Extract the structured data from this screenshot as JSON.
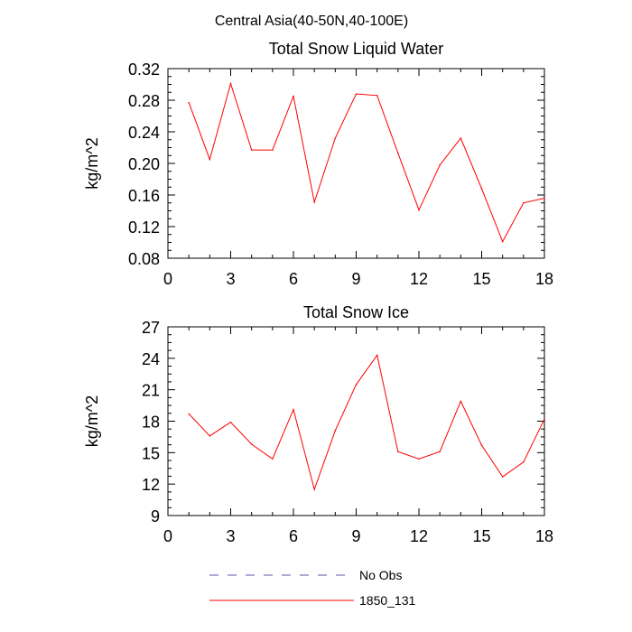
{
  "page_title": "Central Asia(40-50N,40-100E)",
  "chart_data": [
    {
      "type": "line",
      "title": "Total Snow Liquid Water",
      "xlabel": "",
      "ylabel": "kg/m^2",
      "xlim": [
        0,
        18
      ],
      "ylim": [
        0.08,
        0.32
      ],
      "xticks": [
        0,
        3,
        6,
        9,
        12,
        15,
        18
      ],
      "xtick_labels": [
        "0",
        "3",
        "6",
        "9",
        "12",
        "15",
        "18"
      ],
      "yticks": [
        0.08,
        0.12,
        0.16,
        0.2,
        0.24,
        0.28,
        0.32
      ],
      "ytick_labels": [
        "0.08",
        "0.12",
        "0.16",
        "0.20",
        "0.24",
        "0.28",
        "0.32"
      ],
      "grid": false,
      "series": [
        {
          "name": "1850_131",
          "color": "#ff0000",
          "x": [
            1,
            2,
            3,
            4,
            5,
            6,
            7,
            8,
            9,
            10,
            11,
            12,
            13,
            14,
            15,
            16,
            17,
            18
          ],
          "values": [
            0.277,
            0.205,
            0.301,
            0.217,
            0.217,
            0.285,
            0.151,
            0.232,
            0.288,
            0.286,
            0.213,
            0.141,
            0.198,
            0.232,
            0.168,
            0.101,
            0.15,
            0.156
          ]
        }
      ]
    },
    {
      "type": "line",
      "title": "Total Snow Ice",
      "xlabel": "",
      "ylabel": "kg/m^2",
      "xlim": [
        0,
        18
      ],
      "ylim": [
        9,
        27
      ],
      "xticks": [
        0,
        3,
        6,
        9,
        12,
        15,
        18
      ],
      "xtick_labels": [
        "0",
        "3",
        "6",
        "9",
        "12",
        "15",
        "18"
      ],
      "yticks": [
        9,
        12,
        15,
        18,
        21,
        24,
        27
      ],
      "ytick_labels": [
        "9",
        "12",
        "15",
        "18",
        "21",
        "24",
        "27"
      ],
      "grid": false,
      "series": [
        {
          "name": "1850_131",
          "color": "#ff0000",
          "x": [
            1,
            2,
            3,
            4,
            5,
            6,
            7,
            8,
            9,
            10,
            11,
            12,
            13,
            14,
            15,
            16,
            17,
            18
          ],
          "values": [
            18.7,
            16.6,
            17.9,
            15.8,
            14.4,
            19.1,
            11.5,
            17.1,
            21.5,
            24.3,
            15.1,
            14.4,
            15.1,
            19.9,
            15.7,
            12.7,
            14.1,
            18.2
          ]
        }
      ]
    }
  ],
  "legend": [
    {
      "label": "No Obs",
      "color": "#5a5aa8",
      "style": "dashed"
    },
    {
      "label": "1850_131",
      "color": "#ff0000",
      "style": "solid"
    }
  ]
}
